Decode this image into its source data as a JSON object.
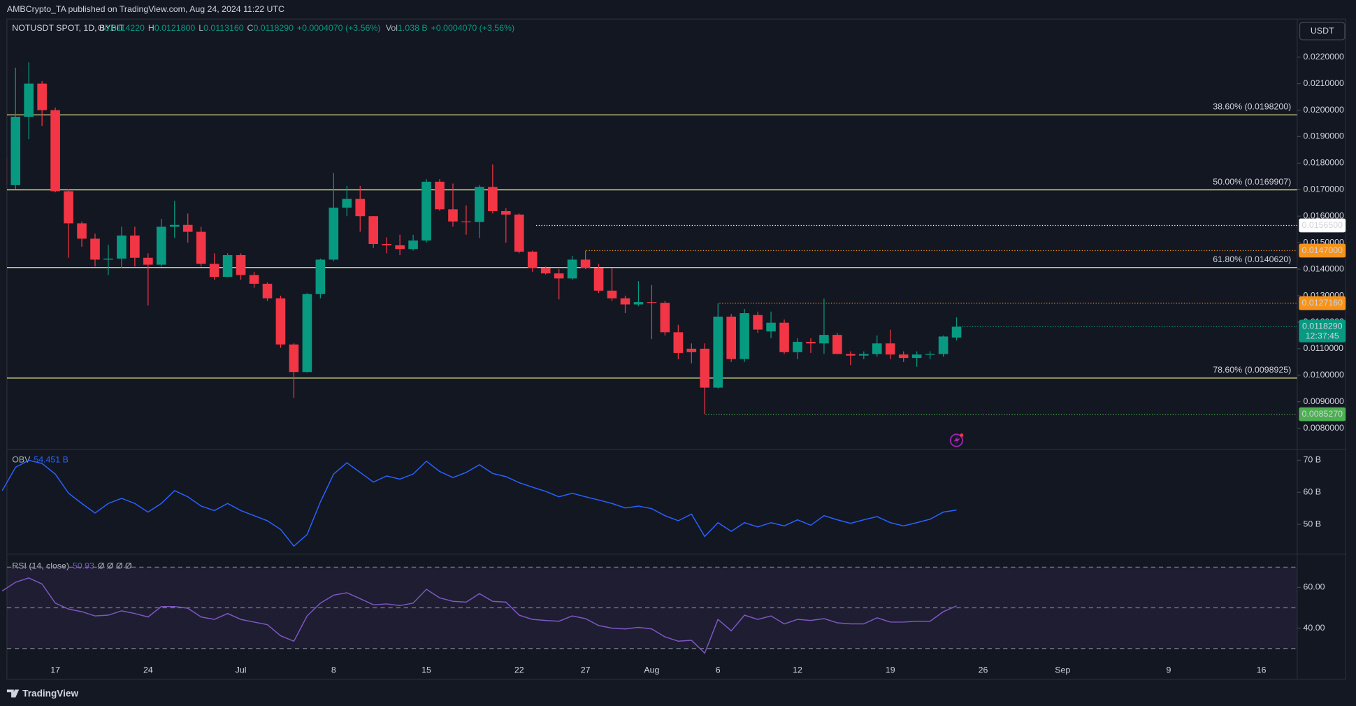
{
  "top_bar": {
    "text": "AMBCrypto_TA published on TradingView.com, Aug 24, 2024 11:22 UTC"
  },
  "footer": {
    "logo": "TradingView"
  },
  "chart_data": [
    {
      "type": "candlestick",
      "symbol": "NOTUSDT SPOT, 1D, BYBIT",
      "currency": "USDT",
      "legend": [
        {
          "key": "O",
          "value": "0.0114220"
        },
        {
          "key": "H",
          "value": "0.0121800"
        },
        {
          "key": "L",
          "value": "0.0113160"
        },
        {
          "key": "C",
          "value": "0.0118290"
        }
      ],
      "change": "+0.0004070 (+3.56%)",
      "volume": {
        "key": "Vol",
        "value": "1.038 B",
        "change": "+0.0004070 (+3.56%)"
      },
      "categories": [
        null,
        null,
        null,
        null,
        null,
        null,
        null,
        null,
        null,
        null,
        null,
        null,
        null,
        null,
        null,
        null,
        null,
        null,
        null,
        null,
        null,
        null,
        null,
        null,
        null,
        null,
        null,
        null,
        null,
        null,
        null,
        null,
        null,
        null,
        null,
        null,
        null,
        null,
        null,
        null,
        null,
        null,
        null,
        null,
        null,
        null,
        null,
        null,
        null,
        null,
        null,
        null,
        null,
        null,
        null,
        null,
        null,
        null,
        null,
        null,
        null,
        null,
        null,
        null,
        null,
        null,
        null,
        null,
        null,
        null,
        null,
        null,
        null
      ],
      "open": [
        0.0182,
        0.01717,
        0.01975,
        0.021,
        0.02,
        0.01694,
        0.01573,
        0.01515,
        0.01436,
        0.0144,
        0.01527,
        0.01443,
        0.01417,
        0.0156,
        0.01567,
        0.01541,
        0.0142,
        0.01371,
        0.01453,
        0.01378,
        0.01345,
        0.0129,
        0.01116,
        0.01012,
        0.01306,
        0.01436,
        0.01632,
        0.01665,
        0.016,
        0.01495,
        0.0149,
        0.01476,
        0.01508,
        0.0173,
        0.01626,
        0.0158,
        0.01578,
        0.0171,
        0.01619,
        0.01606,
        0.01466,
        0.01404,
        0.01384,
        0.01365,
        0.01436,
        0.01404,
        0.01319,
        0.0129,
        0.01267,
        0.01276,
        0.01273,
        0.01162,
        0.011,
        0.011,
        0.00953,
        0.01221,
        0.01061,
        0.01227,
        0.01165,
        0.01198,
        0.01087,
        0.01126,
        0.0112,
        0.01152,
        0.0108,
        0.01074,
        0.0108,
        0.0112,
        0.01078,
        0.01065,
        0.01078,
        0.0108,
        0.011422
      ],
      "high": [
        0.0184,
        0.0216,
        0.0218,
        0.0211,
        0.0201,
        0.017,
        0.0158,
        0.01534,
        0.01492,
        0.0156,
        0.0156,
        0.0146,
        0.0159,
        0.01658,
        0.0161,
        0.0156,
        0.0146,
        0.0146,
        0.0146,
        0.0139,
        0.0135,
        0.013,
        0.0112,
        0.0131,
        0.0144,
        0.01763,
        0.01714,
        0.01714,
        0.016,
        0.0152,
        0.0153,
        0.0153,
        0.0174,
        0.0174,
        0.01723,
        0.0164,
        0.01717,
        0.01795,
        0.0163,
        0.0161,
        0.0147,
        0.0141,
        0.014,
        0.0145,
        0.0147,
        0.0142,
        0.01404,
        0.013,
        0.01355,
        0.0134,
        0.0128,
        0.0119,
        0.0112,
        0.0112,
        0.012716,
        0.01231,
        0.0125,
        0.0124,
        0.0124,
        0.0121,
        0.0114,
        0.0114,
        0.01289,
        0.0116,
        0.0109,
        0.0109,
        0.0115,
        0.01172,
        0.0109,
        0.0109,
        0.0109,
        0.0115,
        0.01218
      ],
      "low": [
        0.017,
        0.017,
        0.0189,
        0.0194,
        0.0169,
        0.01443,
        0.01485,
        0.0141,
        0.01378,
        0.01405,
        0.0141,
        0.01263,
        0.0141,
        0.01518,
        0.015,
        0.0141,
        0.0136,
        0.0137,
        0.0136,
        0.0133,
        0.0128,
        0.01103,
        0.00914,
        0.0101,
        0.0129,
        0.0143,
        0.016,
        0.01541,
        0.0148,
        0.0146,
        0.01453,
        0.0147,
        0.015,
        0.0162,
        0.0156,
        0.0153,
        0.01518,
        0.0161,
        0.015,
        0.0146,
        0.0139,
        0.0138,
        0.01286,
        0.0136,
        0.014,
        0.0131,
        0.0128,
        0.01234,
        0.0126,
        0.01136,
        0.0115,
        0.0106,
        0.01045,
        0.008527,
        0.0095,
        0.0105,
        0.0105,
        0.0116,
        0.0114,
        0.0108,
        0.0106,
        0.01084,
        0.0108,
        0.0108,
        0.01038,
        0.0106,
        0.0107,
        0.0106,
        0.0105,
        0.01032,
        0.0106,
        0.0107,
        0.011316
      ],
      "close": [
        0.0172,
        0.01975,
        0.021,
        0.02,
        0.01694,
        0.01573,
        0.01515,
        0.01436,
        0.0144,
        0.01527,
        0.01443,
        0.01417,
        0.0156,
        0.01567,
        0.01541,
        0.0142,
        0.01371,
        0.01453,
        0.01378,
        0.01345,
        0.0129,
        0.01116,
        0.01012,
        0.01306,
        0.01436,
        0.01632,
        0.01665,
        0.016,
        0.01495,
        0.0149,
        0.01476,
        0.01508,
        0.0173,
        0.01626,
        0.0158,
        0.01578,
        0.0171,
        0.01619,
        0.01606,
        0.01466,
        0.01404,
        0.01384,
        0.01365,
        0.01436,
        0.01404,
        0.01319,
        0.0129,
        0.01267,
        0.01276,
        0.01273,
        0.01162,
        0.01084,
        0.01087,
        0.00953,
        0.01221,
        0.01061,
        0.01234,
        0.01172,
        0.01198,
        0.01087,
        0.01126,
        0.0112,
        0.01152,
        0.0108,
        0.01074,
        0.0108,
        0.0112,
        0.01078,
        0.01065,
        0.01078,
        0.0108,
        0.01146,
        0.011829
      ],
      "up_color": "#089981",
      "down_color": "#f23645",
      "xlim": [
        0.35,
        97.7
      ],
      "xticks": [
        {
          "value": 4,
          "label": "17"
        },
        {
          "value": 11,
          "label": "24"
        },
        {
          "value": 18,
          "label": "Jul"
        },
        {
          "value": 25,
          "label": "8"
        },
        {
          "value": 32,
          "label": "15"
        },
        {
          "value": 39,
          "label": "22"
        },
        {
          "value": 44,
          "label": "27"
        },
        {
          "value": 49,
          "label": "Aug"
        },
        {
          "value": 54,
          "label": "6"
        },
        {
          "value": 60,
          "label": "12"
        },
        {
          "value": 67,
          "label": "19"
        },
        {
          "value": 74,
          "label": "26"
        },
        {
          "value": 80,
          "label": "Sep"
        },
        {
          "value": 88,
          "label": "9"
        },
        {
          "value": 95,
          "label": "16"
        }
      ],
      "ylim": [
        0.007215,
        0.023436
      ],
      "yticks": [
        {
          "value": 0.008,
          "label": "0.0080000"
        },
        {
          "value": 0.009,
          "label": "0.0090000"
        },
        {
          "value": 0.01,
          "label": "0.0100000"
        },
        {
          "value": 0.011,
          "label": "0.0110000"
        },
        {
          "value": 0.012,
          "label": "0.0120000"
        },
        {
          "value": 0.013,
          "label": "0.0130000"
        },
        {
          "value": 0.014,
          "label": "0.0140000"
        },
        {
          "value": 0.015,
          "label": "0.0150000"
        },
        {
          "value": 0.016,
          "label": "0.0160000"
        },
        {
          "value": 0.017,
          "label": "0.0170000"
        },
        {
          "value": 0.018,
          "label": "0.0180000"
        },
        {
          "value": 0.019,
          "label": "0.0190000"
        },
        {
          "value": 0.02,
          "label": "0.0200000"
        },
        {
          "value": 0.021,
          "label": "0.0210000"
        },
        {
          "value": 0.022,
          "label": "0.0220000"
        }
      ],
      "fib_color": "#e9e38a",
      "fib_levels": [
        {
          "value": 0.01982,
          "label": "38.60% (0.0198200)"
        },
        {
          "value": 0.0169907,
          "label": "50.00% (0.0169907)"
        },
        {
          "value": 0.014062,
          "label": "61.80% (0.0140620)"
        },
        {
          "value": 0.0098925,
          "label": "78.60% (0.0098925)"
        }
      ],
      "price_lines": [
        {
          "value": 0.01565,
          "label": "0.0156500",
          "color": "#ffffff"
        },
        {
          "value": 0.0147,
          "label": "0.0147000",
          "color": "#f7931a"
        },
        {
          "value": 0.012716,
          "label": "0.0127160",
          "color": "#f7931a"
        },
        {
          "value": 0.008527,
          "label": "0.0085270",
          "color": "#4caf50"
        }
      ],
      "last_price": {
        "value": 0.011829,
        "label": "0.0118290",
        "countdown": "12:37:45"
      }
    },
    {
      "type": "line",
      "name": "OBV",
      "value_label": "54.451 B",
      "color": "#2962ff",
      "values": [
        60.5,
        67.8,
        70,
        69,
        65.7,
        59.7,
        56.5,
        53.5,
        56.5,
        58.1,
        56.5,
        53.8,
        56.5,
        60.5,
        58.6,
        55.7,
        54.3,
        56.5,
        54.3,
        52.7,
        51.1,
        48.4,
        43.2,
        46.8,
        57.0,
        65.7,
        69.2,
        66.2,
        63.2,
        65.1,
        64.1,
        65.7,
        69.7,
        66.5,
        64.6,
        66.2,
        68.6,
        65.9,
        64.9,
        63.0,
        61.6,
        60.3,
        58.6,
        59.7,
        58.6,
        57.6,
        56.5,
        55.1,
        55.7,
        54.9,
        52.7,
        51.1,
        53.2,
        46.2,
        50.5,
        47.8,
        50.5,
        49.2,
        50.5,
        49.5,
        51.4,
        49.7,
        52.7,
        51.4,
        50.3,
        51.4,
        52.4,
        50.5,
        49.5,
        50.5,
        51.6,
        53.8,
        54.451
      ],
      "ylim": [
        40.81,
        73.24
      ],
      "yticks": [
        {
          "value": 50,
          "label": "50 B"
        },
        {
          "value": 60,
          "label": "60 B"
        },
        {
          "value": 70,
          "label": "70 B"
        }
      ]
    },
    {
      "type": "line",
      "name": "RSI (14, close)",
      "value_label": "50.93",
      "markers": "Ø Ø Ø Ø",
      "color": "#7e57c2",
      "values": [
        58.3,
        62.6,
        64.7,
        61.7,
        52.3,
        49.4,
        48.1,
        46,
        46.4,
        48.5,
        47.2,
        45.5,
        50.6,
        50.6,
        49.8,
        45.5,
        44.3,
        47.2,
        44.3,
        43,
        41.7,
        36.2,
        33.6,
        46,
        52.3,
        56.2,
        57.4,
        54.5,
        51.5,
        51.9,
        51.1,
        52.3,
        59.1,
        54.9,
        53.2,
        52.8,
        57,
        53.2,
        52.8,
        46.4,
        44.3,
        43.8,
        43.4,
        46,
        44.7,
        41.3,
        40,
        39.6,
        40.4,
        39.6,
        35.7,
        33.6,
        34,
        27.7,
        44.3,
        38.7,
        46.4,
        44.3,
        46,
        42.1,
        44.3,
        43.8,
        44.7,
        42.6,
        42.1,
        42.1,
        45.1,
        43,
        43,
        43.4,
        43.4,
        48.1,
        50.93
      ],
      "ylim": [
        14.9,
        76.17
      ],
      "yticks": [
        {
          "value": 40,
          "label": "40.00"
        },
        {
          "value": 60,
          "label": "60.00"
        }
      ],
      "bands": [
        30,
        50,
        70
      ],
      "band_fill": "#7e57c2"
    }
  ]
}
